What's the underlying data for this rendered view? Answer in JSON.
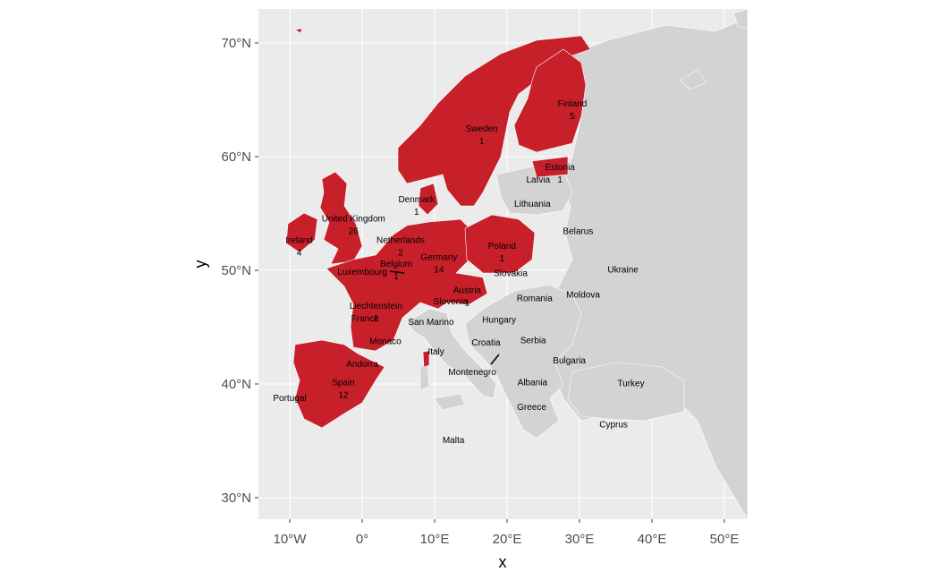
{
  "chart_data": {
    "type": "map",
    "xlabel": "x",
    "ylabel": "y",
    "xlim": [
      -14,
      53
    ],
    "ylim": [
      28,
      73
    ],
    "x_ticks": [
      {
        "value": -10,
        "label": "10°W"
      },
      {
        "value": 0,
        "label": "0°"
      },
      {
        "value": 10,
        "label": "10°E"
      },
      {
        "value": 20,
        "label": "20°E"
      },
      {
        "value": 30,
        "label": "30°E"
      },
      {
        "value": 40,
        "label": "40°E"
      },
      {
        "value": 50,
        "label": "50°E"
      }
    ],
    "y_ticks": [
      {
        "value": 30,
        "label": "30°N"
      },
      {
        "value": 40,
        "label": "40°N"
      },
      {
        "value": 50,
        "label": "50°N"
      },
      {
        "value": 60,
        "label": "60°N"
      },
      {
        "value": 70,
        "label": "70°N"
      }
    ],
    "grid": true,
    "colors": {
      "highlight": "#c8202b",
      "other": "#d3d3d3",
      "panel": "#ebebeb",
      "grid": "#ffffff"
    },
    "labels": [
      {
        "name": "Finland",
        "value": "5",
        "lon": 29.0,
        "lat": 64.4
      },
      {
        "name": "Sweden",
        "value": "1",
        "lon": 16.5,
        "lat": 62.2
      },
      {
        "name": "Estonia",
        "value": "1",
        "lon": 27.3,
        "lat": 58.8
      },
      {
        "name": "Latvia",
        "value": "",
        "lon": 24.3,
        "lat": 57.7
      },
      {
        "name": "United Kingdom",
        "value": "26",
        "lon": -1.2,
        "lat": 54.3
      },
      {
        "name": "Denmark",
        "value": "1",
        "lon": 7.5,
        "lat": 56.0
      },
      {
        "name": "Ireland",
        "value": "4",
        "lon": -8.7,
        "lat": 52.4
      },
      {
        "name": "Lithuania",
        "value": "",
        "lon": 23.5,
        "lat": 55.6
      },
      {
        "name": "Netherlands",
        "value": "2",
        "lon": 5.3,
        "lat": 52.4
      },
      {
        "name": "Belarus",
        "value": "",
        "lon": 29.8,
        "lat": 53.2
      },
      {
        "name": "Poland",
        "value": "1",
        "lon": 19.3,
        "lat": 51.9
      },
      {
        "name": "Belgium",
        "value": "1",
        "lon": 4.7,
        "lat": 50.3
      },
      {
        "name": "Germany",
        "value": "14",
        "lon": 10.6,
        "lat": 50.9
      },
      {
        "name": "Ukraine",
        "value": "",
        "lon": 36.0,
        "lat": 49.8
      },
      {
        "name": "Luxembourg",
        "value": "",
        "lon": 0.0,
        "lat": 49.6
      },
      {
        "name": "Slovakia",
        "value": "",
        "lon": 20.5,
        "lat": 49.5
      },
      {
        "name": "Austria",
        "value": "1",
        "lon": 14.5,
        "lat": 48.0
      },
      {
        "name": "Liechtenstein",
        "value": "1",
        "lon": 1.9,
        "lat": 46.6
      },
      {
        "name": "Moldova",
        "value": "",
        "lon": 30.5,
        "lat": 47.6
      },
      {
        "name": "Romania",
        "value": "",
        "lon": 23.8,
        "lat": 47.3
      },
      {
        "name": "Slovenia",
        "value": "",
        "lon": 12.2,
        "lat": 47.0
      },
      {
        "name": "France",
        "value": "",
        "lon": 0.4,
        "lat": 45.5
      },
      {
        "name": "San Marino",
        "value": "",
        "lon": 9.5,
        "lat": 45.2
      },
      {
        "name": "Hungary",
        "value": "",
        "lon": 18.9,
        "lat": 45.4
      },
      {
        "name": "Monaco",
        "value": "",
        "lon": 3.2,
        "lat": 43.5
      },
      {
        "name": "Serbia",
        "value": "",
        "lon": 23.6,
        "lat": 43.6
      },
      {
        "name": "Croatia",
        "value": "",
        "lon": 17.1,
        "lat": 43.4
      },
      {
        "name": "Italy",
        "value": "",
        "lon": 10.2,
        "lat": 42.6
      },
      {
        "name": "Andorra",
        "value": "",
        "lon": 0.0,
        "lat": 41.5
      },
      {
        "name": "Bulgaria",
        "value": "",
        "lon": 28.6,
        "lat": 41.8
      },
      {
        "name": "Spain",
        "value": "12",
        "lon": -2.6,
        "lat": 39.9
      },
      {
        "name": "Montenegro",
        "value": "",
        "lon": 15.2,
        "lat": 40.8
      },
      {
        "name": "Albania",
        "value": "",
        "lon": 23.5,
        "lat": 39.9
      },
      {
        "name": "Turkey",
        "value": "",
        "lon": 37.1,
        "lat": 39.8
      },
      {
        "name": "Portugal",
        "value": "",
        "lon": -10.0,
        "lat": 38.5
      },
      {
        "name": "Greece",
        "value": "",
        "lon": 23.4,
        "lat": 37.7
      },
      {
        "name": "Cyprus",
        "value": "",
        "lon": 34.7,
        "lat": 36.2
      },
      {
        "name": "Malta",
        "value": "",
        "lon": 12.6,
        "lat": 34.8
      }
    ]
  }
}
